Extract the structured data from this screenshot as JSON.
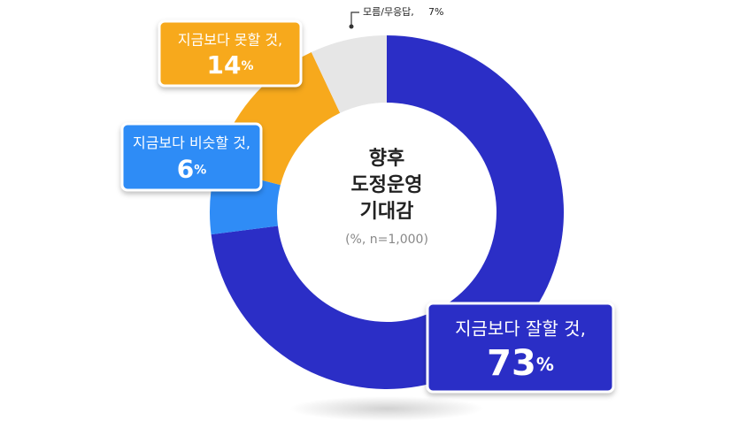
{
  "chart_data": {
    "type": "donut",
    "title": [
      "향후",
      "도정운영",
      "기대감"
    ],
    "subtitle": "(%, n=1,000)",
    "categories": [
      "지금보다 잘할 것,",
      "지금보다 비슷할 것,",
      "지금보다 못할 것,",
      "모름/무응답,"
    ],
    "values": [
      73,
      6,
      14,
      7
    ],
    "value_labels": [
      "73%",
      "6%",
      "14%",
      "7%"
    ],
    "colors": [
      "#2b2ec6",
      "#2f8cf6",
      "#f7a91c",
      "#e6e6e6"
    ]
  }
}
